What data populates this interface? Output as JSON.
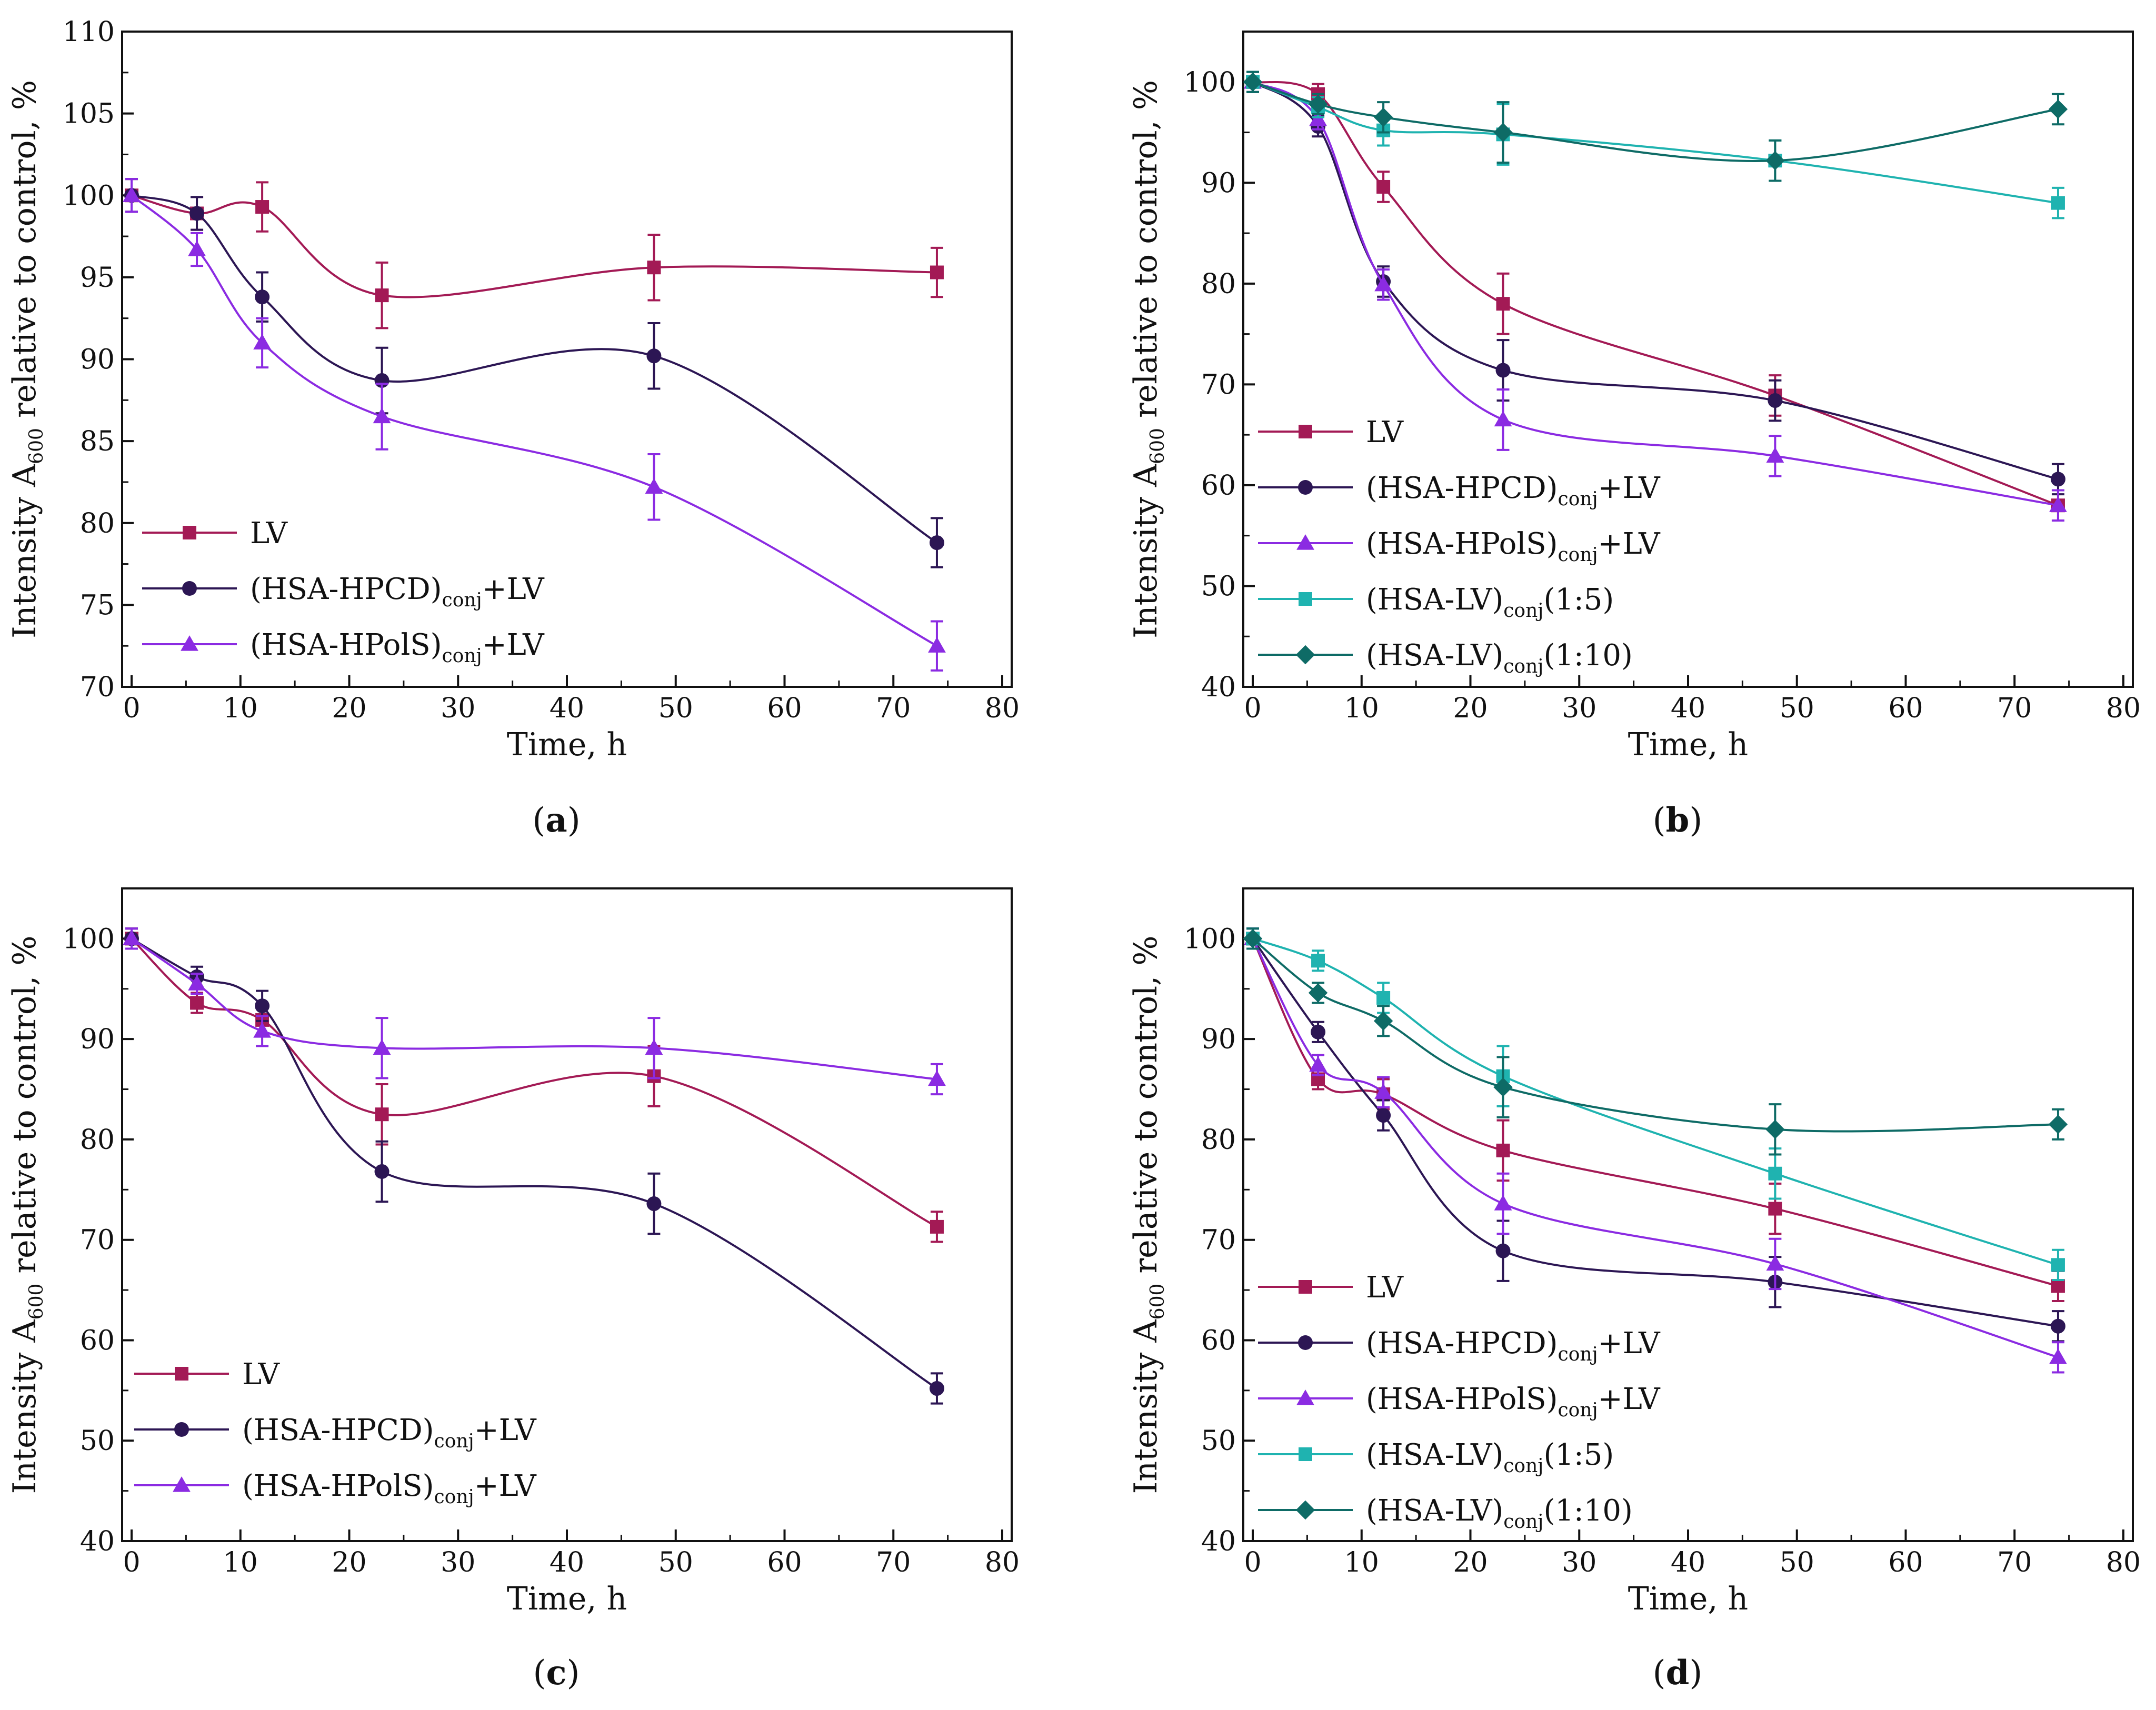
{
  "colors": {
    "lv": "#a31a55",
    "hpcd": "#2c1654",
    "hpols": "#8b2be2",
    "lv15": "#1fb3b0",
    "lv110": "#0e6b66"
  },
  "legend_labels": {
    "lv": "LV",
    "hpcd_main": "(HSA-HPCD)",
    "hpcd_sub": "conj",
    "hpcd_tail": "+LV",
    "hpols_main": "(HSA-HPolS)",
    "hpols_sub": "conj",
    "hpols_tail": "+LV",
    "lv15_main": "(HSA-LV)",
    "lv15_sub": "conj",
    "lv15_tail": "(1:5)",
    "lv110_main": "(HSA-LV)",
    "lv110_sub": "conj",
    "lv110_tail": "(1:10)"
  },
  "chart_data": [
    {
      "panel": "a",
      "type": "line",
      "title": "",
      "xlabel": "Time, h",
      "ylabel_main": "Intensity A",
      "ylabel_sub": "600",
      "ylabel_tail": " relative to control, %",
      "xlim": [
        0,
        80
      ],
      "ylim": [
        70,
        110
      ],
      "xticks": [
        0,
        10,
        20,
        30,
        40,
        50,
        60,
        70,
        80
      ],
      "yticks": [
        70,
        75,
        80,
        85,
        90,
        95,
        100,
        105,
        110
      ],
      "legend_position": "bottom-left",
      "caption_open": "(",
      "caption_letter": "a",
      "caption_close": ")",
      "series": [
        {
          "key": "lv",
          "marker": "square",
          "x": [
            0,
            6,
            12,
            23,
            48,
            74
          ],
          "y": [
            100,
            98.9,
            99.3,
            93.9,
            95.6,
            95.3
          ],
          "err": [
            1.0,
            1.0,
            1.5,
            2.0,
            2.0,
            1.5
          ]
        },
        {
          "key": "hpcd",
          "marker": "circle",
          "x": [
            0,
            6,
            12,
            23,
            48,
            74
          ],
          "y": [
            100,
            98.9,
            93.8,
            88.7,
            90.2,
            78.8
          ],
          "err": [
            1.0,
            1.0,
            1.5,
            2.0,
            2.0,
            1.5
          ]
        },
        {
          "key": "hpols",
          "marker": "triangle",
          "x": [
            0,
            6,
            12,
            23,
            48,
            74
          ],
          "y": [
            100,
            96.7,
            91.0,
            86.5,
            82.2,
            72.5
          ],
          "err": [
            1.0,
            1.0,
            1.5,
            2.0,
            2.0,
            1.5
          ]
        }
      ]
    },
    {
      "panel": "b",
      "type": "line",
      "title": "",
      "xlabel": "Time, h",
      "ylabel_main": "Intensity A",
      "ylabel_sub": "600",
      "ylabel_tail": " relative to control, %",
      "xlim": [
        0,
        80
      ],
      "ylim": [
        40,
        105
      ],
      "xticks": [
        0,
        10,
        20,
        30,
        40,
        50,
        60,
        70,
        80
      ],
      "yticks": [
        40,
        50,
        60,
        70,
        80,
        90,
        100
      ],
      "legend_position": "bottom-left",
      "caption_open": "(",
      "caption_letter": "b",
      "caption_close": ")",
      "series": [
        {
          "key": "lv",
          "marker": "square",
          "x": [
            0,
            6,
            12,
            23,
            48,
            74
          ],
          "y": [
            100,
            98.8,
            89.6,
            78.0,
            68.9,
            58.0
          ],
          "err": [
            1.0,
            1.0,
            1.5,
            3.0,
            2.0,
            1.5
          ]
        },
        {
          "key": "hpcd",
          "marker": "circle",
          "x": [
            0,
            6,
            12,
            23,
            48,
            74
          ],
          "y": [
            100,
            95.6,
            80.2,
            71.4,
            68.4,
            60.6
          ],
          "err": [
            1.0,
            1.0,
            1.5,
            3.0,
            2.0,
            1.5
          ]
        },
        {
          "key": "hpols",
          "marker": "triangle",
          "x": [
            0,
            6,
            12,
            23,
            48,
            74
          ],
          "y": [
            100,
            96.3,
            79.9,
            66.5,
            62.9,
            58.0
          ],
          "err": [
            1.0,
            1.0,
            1.5,
            3.0,
            2.0,
            1.5
          ]
        },
        {
          "key": "lv15",
          "marker": "square",
          "x": [
            0,
            6,
            12,
            23,
            48,
            74
          ],
          "y": [
            100,
            97.5,
            95.2,
            94.8,
            92.2,
            88.0
          ],
          "err": [
            1.0,
            1.0,
            1.5,
            3.0,
            2.0,
            1.5
          ]
        },
        {
          "key": "lv110",
          "marker": "diamond",
          "x": [
            0,
            6,
            12,
            23,
            48,
            74
          ],
          "y": [
            100,
            97.8,
            96.5,
            95.0,
            92.2,
            97.3
          ],
          "err": [
            1.0,
            1.0,
            1.5,
            3.0,
            2.0,
            1.5
          ]
        }
      ]
    },
    {
      "panel": "c",
      "type": "line",
      "title": "",
      "xlabel": "Time, h",
      "ylabel_main": "Intensity A",
      "ylabel_sub": "600",
      "ylabel_tail": " relative to control, %",
      "xlim": [
        0,
        80
      ],
      "ylim": [
        40,
        105
      ],
      "xticks": [
        0,
        10,
        20,
        30,
        40,
        50,
        60,
        70,
        80
      ],
      "yticks": [
        40,
        50,
        60,
        70,
        80,
        90,
        100
      ],
      "legend_position": "bottom-left",
      "caption_open": "(",
      "caption_letter": "c",
      "caption_close": ")",
      "series": [
        {
          "key": "lv",
          "marker": "square",
          "x": [
            0,
            6,
            12,
            23,
            48,
            74
          ],
          "y": [
            100,
            93.6,
            91.9,
            82.5,
            86.3,
            71.3
          ],
          "err": [
            1.0,
            1.0,
            1.5,
            3.0,
            3.0,
            1.5
          ]
        },
        {
          "key": "hpcd",
          "marker": "circle",
          "x": [
            0,
            6,
            12,
            23,
            48,
            74
          ],
          "y": [
            100,
            96.2,
            93.3,
            76.8,
            73.6,
            55.2
          ],
          "err": [
            1.0,
            1.0,
            1.5,
            3.0,
            3.0,
            1.5
          ]
        },
        {
          "key": "hpols",
          "marker": "triangle",
          "x": [
            0,
            6,
            12,
            23,
            48,
            74
          ],
          "y": [
            100,
            95.5,
            90.8,
            89.1,
            89.1,
            86.0
          ],
          "err": [
            1.0,
            1.0,
            1.5,
            3.0,
            3.0,
            1.5
          ]
        }
      ]
    },
    {
      "panel": "d",
      "type": "line",
      "title": "",
      "xlabel": "Time, h",
      "ylabel_main": "Intensity A",
      "ylabel_sub": "600",
      "ylabel_tail": " relative to control, %",
      "xlim": [
        0,
        80
      ],
      "ylim": [
        40,
        105
      ],
      "xticks": [
        0,
        10,
        20,
        30,
        40,
        50,
        60,
        70,
        80
      ],
      "yticks": [
        40,
        50,
        60,
        70,
        80,
        90,
        100
      ],
      "legend_position": "bottom-left",
      "caption_open": "(",
      "caption_letter": "d",
      "caption_close": ")",
      "series": [
        {
          "key": "lv",
          "marker": "square",
          "x": [
            0,
            6,
            12,
            23,
            48,
            74
          ],
          "y": [
            100,
            86.0,
            84.5,
            78.9,
            73.1,
            65.4
          ],
          "err": [
            1.0,
            1.0,
            1.5,
            3.0,
            2.5,
            1.5
          ]
        },
        {
          "key": "hpcd",
          "marker": "circle",
          "x": [
            0,
            6,
            12,
            23,
            48,
            74
          ],
          "y": [
            100,
            90.7,
            82.4,
            68.9,
            65.8,
            61.4
          ],
          "err": [
            1.0,
            1.0,
            1.5,
            3.0,
            2.5,
            1.5
          ]
        },
        {
          "key": "hpols",
          "marker": "triangle",
          "x": [
            0,
            6,
            12,
            23,
            48,
            74
          ],
          "y": [
            100,
            87.4,
            84.7,
            73.6,
            67.6,
            58.3
          ],
          "err": [
            1.0,
            1.0,
            1.5,
            3.0,
            2.5,
            1.5
          ]
        },
        {
          "key": "lv15",
          "marker": "square",
          "x": [
            0,
            6,
            12,
            23,
            48,
            74
          ],
          "y": [
            100,
            97.8,
            94.1,
            86.3,
            76.6,
            67.5
          ],
          "err": [
            1.0,
            1.0,
            1.5,
            3.0,
            2.5,
            1.5
          ]
        },
        {
          "key": "lv110",
          "marker": "diamond",
          "x": [
            0,
            6,
            12,
            23,
            48,
            74
          ],
          "y": [
            100,
            94.6,
            91.8,
            85.2,
            81.0,
            81.5
          ],
          "err": [
            1.0,
            1.0,
            1.5,
            3.0,
            2.5,
            1.5
          ]
        }
      ]
    }
  ]
}
